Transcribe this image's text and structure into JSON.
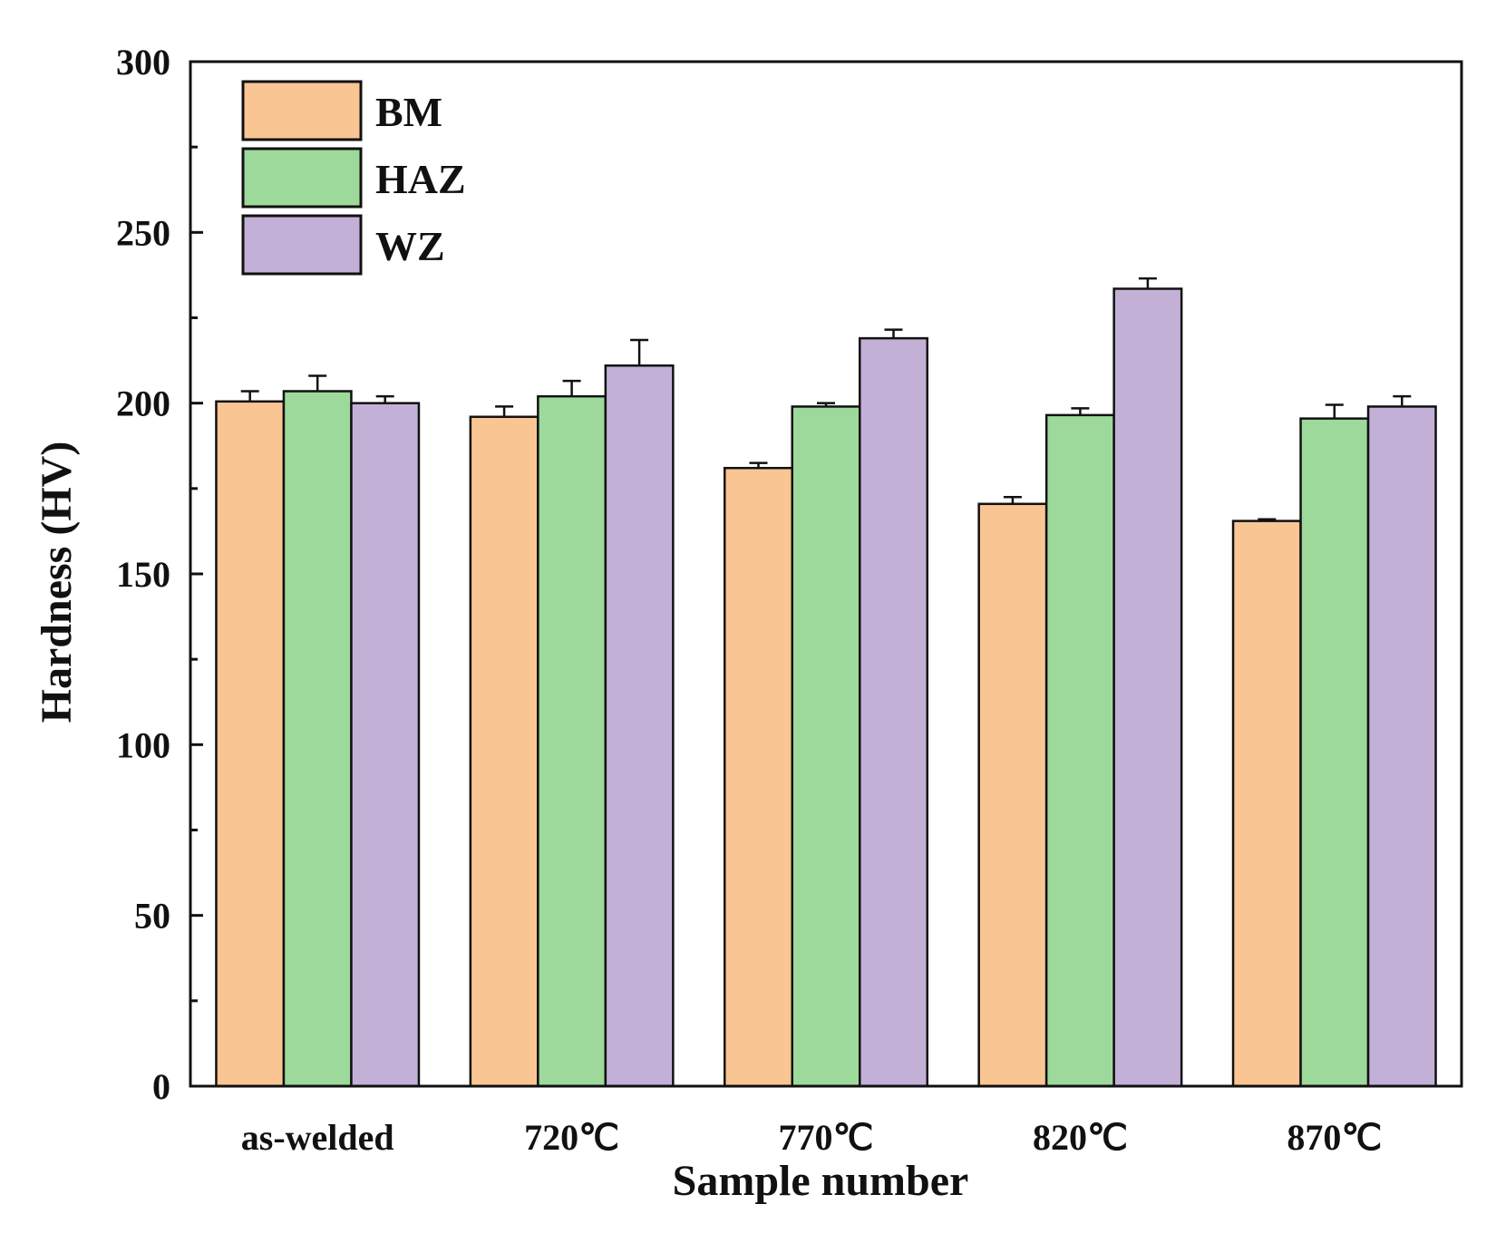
{
  "chart_data": {
    "type": "bar",
    "title": "",
    "xlabel": "Sample number",
    "ylabel": "Hardness (HV)",
    "ylim": [
      0,
      300
    ],
    "yticks": [
      0,
      50,
      100,
      150,
      200,
      250,
      300
    ],
    "grid": false,
    "legend_position": "top-left",
    "categories": [
      "as-welded",
      "720℃",
      "770℃",
      "820℃",
      "870℃"
    ],
    "series": [
      {
        "name": "BM",
        "color": "#F9C593",
        "values": [
          200.5,
          196.0,
          181.0,
          170.5,
          165.5
        ],
        "errors": [
          3.0,
          3.0,
          1.5,
          2.0,
          0.5
        ]
      },
      {
        "name": "HAZ",
        "color": "#9DD99A",
        "values": [
          203.5,
          202.0,
          199.0,
          196.5,
          195.5
        ],
        "errors": [
          4.5,
          4.5,
          1.0,
          2.0,
          4.0
        ]
      },
      {
        "name": "WZ",
        "color": "#C3B0D7",
        "values": [
          200.0,
          211.0,
          219.0,
          233.5,
          199.0
        ],
        "errors": [
          2.0,
          7.5,
          2.5,
          3.0,
          3.0
        ]
      }
    ]
  }
}
